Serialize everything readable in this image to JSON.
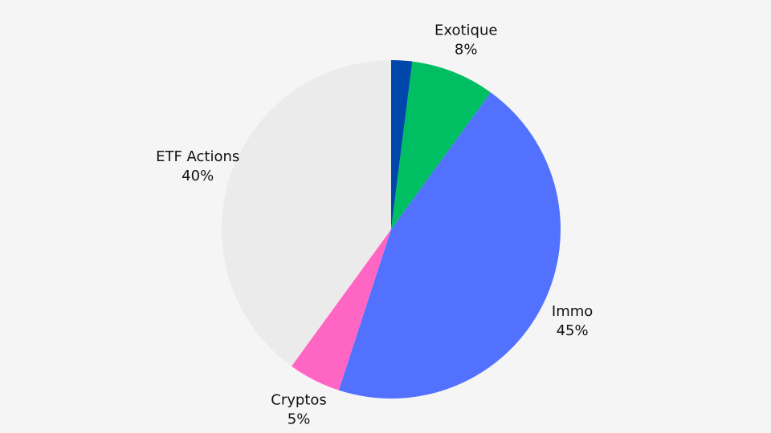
{
  "chart_data": {
    "type": "pie",
    "categories": [
      null,
      "Exotique",
      "Immo",
      "Cryptos",
      "ETF Actions"
    ],
    "values": [
      2,
      8,
      45,
      5,
      40
    ],
    "value_labels": [
      null,
      "8%",
      "45%",
      "5%",
      "40%"
    ],
    "colors": [
      "#0047ab",
      "#00bf63",
      "#5271ff",
      "#ff66c4",
      "#ebebeb"
    ]
  }
}
